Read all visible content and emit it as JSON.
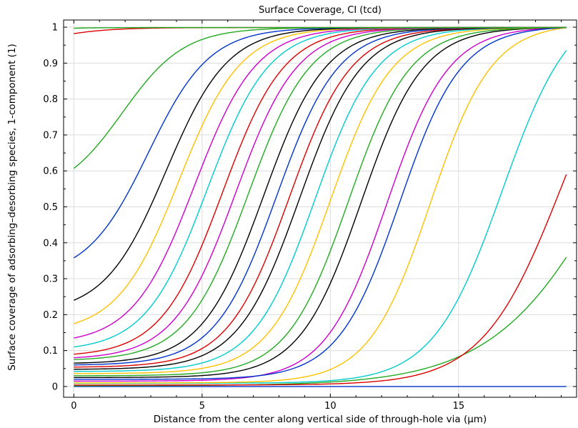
{
  "chart_data": {
    "type": "line",
    "title": "Surface Coverage, CI (tcd)",
    "xlabel": "Distance from the center along vertical side of through-hole via (µm)",
    "ylabel": "Surface coverage of adsorbing–desorbing species, 1-component (1)",
    "xlim": [
      -0.4,
      19.6
    ],
    "ylim": [
      -0.03,
      1.02
    ],
    "x_range": [
      0,
      19.2
    ],
    "grid": true,
    "legend": "none",
    "x_ticks": [
      {
        "value": 0,
        "label": "0"
      },
      {
        "value": 5,
        "label": "5"
      },
      {
        "value": 10,
        "label": "10"
      },
      {
        "value": 15,
        "label": "15"
      }
    ],
    "y_ticks": [
      {
        "value": 0,
        "label": "0"
      },
      {
        "value": 0.1,
        "label": "0.1"
      },
      {
        "value": 0.2,
        "label": "0.2"
      },
      {
        "value": 0.3,
        "label": "0.3"
      },
      {
        "value": 0.4,
        "label": "0.4"
      },
      {
        "value": 0.5,
        "label": "0.5"
      },
      {
        "value": 0.6,
        "label": "0.6"
      },
      {
        "value": 0.7,
        "label": "0.7"
      },
      {
        "value": 0.8,
        "label": "0.8"
      },
      {
        "value": 0.9,
        "label": "0.9"
      },
      {
        "value": 1,
        "label": "1"
      }
    ],
    "series": [
      {
        "color": "#0033cc",
        "midpoint": 60,
        "width": 1.0,
        "value_at_0": 0.0,
        "value_at_end": 0.0
      },
      {
        "color": "#22aa22",
        "midpoint": 21.5,
        "width": 2.4,
        "value_at_0": 0.002,
        "value_at_end": 0.36
      },
      {
        "color": "#dd0000",
        "midpoint": 19.05,
        "width": 1.55,
        "value_at_0": 0.004,
        "value_at_end": 0.59
      },
      {
        "color": "#00cccc",
        "midpoint": 16.7,
        "width": 1.35,
        "value_at_0": 0.009,
        "value_at_end": 0.935
      },
      {
        "color": "#ffc000",
        "midpoint": 13.9,
        "width": 1.2,
        "value_at_0": 0.01,
        "value_at_end": 0.999
      },
      {
        "color": "#cc00cc",
        "midpoint": 12.2,
        "width": 1.2,
        "value_at_0": 0.015,
        "value_at_end": 0.999
      },
      {
        "color": "#0033cc",
        "midpoint": 12.7,
        "width": 1.2,
        "value_at_0": 0.02,
        "value_at_end": 0.999
      },
      {
        "color": "#000000",
        "midpoint": 11.2,
        "width": 1.2,
        "value_at_0": 0.025,
        "value_at_end": 0.999
      },
      {
        "color": "#22aa22",
        "midpoint": 10.7,
        "width": 1.2,
        "value_at_0": 0.03,
        "value_at_end": 0.999
      },
      {
        "color": "#ffc000",
        "midpoint": 10.0,
        "width": 1.2,
        "value_at_0": 0.036,
        "value_at_end": 0.999
      },
      {
        "color": "#00cccc",
        "midpoint": 9.4,
        "width": 1.2,
        "value_at_0": 0.042,
        "value_at_end": 0.999
      },
      {
        "color": "#000000",
        "midpoint": 8.8,
        "width": 1.2,
        "value_at_0": 0.048,
        "value_at_end": 0.999
      },
      {
        "color": "#dd0000",
        "midpoint": 8.4,
        "width": 1.2,
        "value_at_0": 0.054,
        "value_at_end": 0.999
      },
      {
        "color": "#0033cc",
        "midpoint": 7.9,
        "width": 1.2,
        "value_at_0": 0.06,
        "value_at_end": 0.999
      },
      {
        "color": "#000000",
        "midpoint": 7.4,
        "width": 1.2,
        "value_at_0": 0.065,
        "value_at_end": 0.999
      },
      {
        "color": "#22aa22",
        "midpoint": 6.8,
        "width": 1.2,
        "value_at_0": 0.075,
        "value_at_end": 0.999
      },
      {
        "color": "#cc00cc",
        "midpoint": 6.3,
        "width": 1.2,
        "value_at_0": 0.08,
        "value_at_end": 0.999
      },
      {
        "color": "#dd0000",
        "midpoint": 5.8,
        "width": 1.2,
        "value_at_0": 0.09,
        "value_at_end": 0.999
      },
      {
        "color": "#00cccc",
        "midpoint": 5.2,
        "width": 1.2,
        "value_at_0": 0.11,
        "value_at_end": 0.999
      },
      {
        "color": "#cc00cc",
        "midpoint": 4.7,
        "width": 1.2,
        "value_at_0": 0.135,
        "value_at_end": 0.999
      },
      {
        "color": "#ffc000",
        "midpoint": 4.1,
        "width": 1.2,
        "value_at_0": 0.175,
        "value_at_end": 0.999
      },
      {
        "color": "#000000",
        "midpoint": 3.6,
        "width": 1.2,
        "value_at_0": 0.24,
        "value_at_end": 0.999
      },
      {
        "color": "#0033cc",
        "midpoint": 2.9,
        "width": 1.2,
        "value_at_0": 0.358,
        "value_at_end": 0.999
      },
      {
        "color": "#22aa22",
        "midpoint": 1.9,
        "width": 1.2,
        "value_at_0": 0.607,
        "value_at_end": 0.999
      },
      {
        "color": "#dd0000",
        "midpoint": -1.5,
        "width": 1.2,
        "value_at_0": 0.982,
        "value_at_end": 0.999
      },
      {
        "color": "#22aa22",
        "midpoint": -6,
        "width": 1.0,
        "value_at_0": 0.997,
        "value_at_end": 0.999
      }
    ]
  }
}
